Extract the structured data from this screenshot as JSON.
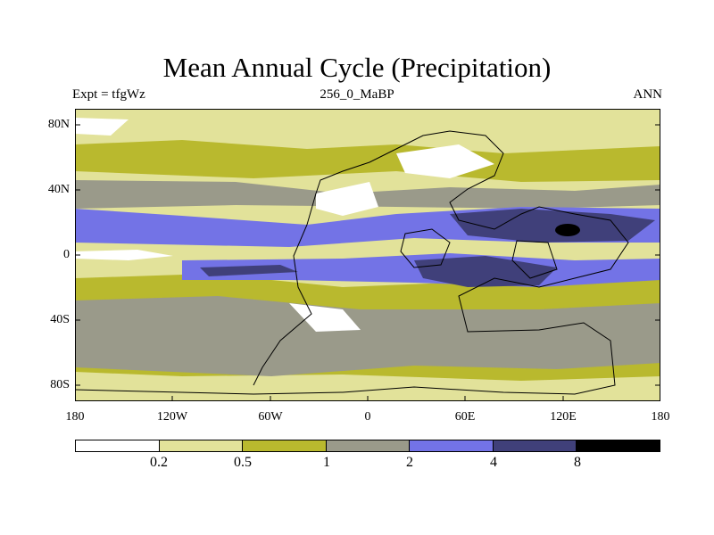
{
  "title": "Mean Annual Cycle (Precipitation)",
  "subtitle_left": "Expt = tfgWz",
  "subtitle_center": "256_0_MaBP",
  "subtitle_right": "ANN",
  "y_ticks": [
    "80N",
    "40N",
    "0",
    "40S",
    "80S"
  ],
  "x_ticks": [
    "180",
    "120W",
    "60W",
    "0",
    "60E",
    "120E",
    "180"
  ],
  "colorbar": {
    "colors": [
      "#ffffff",
      "#e2e29a",
      "#b9b92e",
      "#9a9a8a",
      "#7373e6",
      "#40407a",
      "#000000"
    ],
    "labels": [
      "0.2",
      "0.5",
      "1",
      "2",
      "4",
      "8"
    ]
  }
}
